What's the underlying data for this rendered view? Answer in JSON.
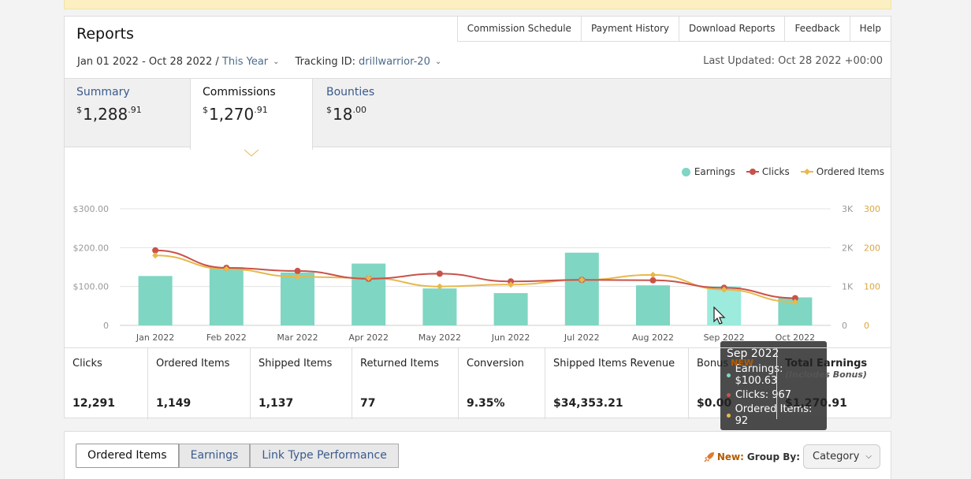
{
  "header": {
    "title": "Reports",
    "links": [
      "Commission Schedule",
      "Payment History",
      "Download Reports",
      "Feedback",
      "Help"
    ],
    "date_range": "Jan 01 2022 - Oct 28 2022",
    "date_sep": " / ",
    "date_preset": "This Year",
    "tracking_label": "Tracking ID:",
    "tracking_id": "drillwarrior-20",
    "last_updated": "Last Updated: Oct 28 2022 +00:00"
  },
  "tabs": {
    "summary": {
      "label": "Summary",
      "dollars": "1,288",
      "cents": ".91",
      "currency": "$"
    },
    "commissions": {
      "label": "Commissions",
      "dollars": "1,270",
      "cents": ".91",
      "currency": "$"
    },
    "bounties": {
      "label": "Bounties",
      "dollars": "18",
      "cents": ".00",
      "currency": "$"
    }
  },
  "colors": {
    "earnings": "#7fd6c2",
    "clicks": "#c9524a",
    "ordered": "#e8b84a",
    "hover_bar": "#9cebdc"
  },
  "chart_data": {
    "type": "bar",
    "categories": [
      "Jan 2022",
      "Feb 2022",
      "Mar 2022",
      "Apr 2022",
      "May 2022",
      "Jun 2022",
      "Jul 2022",
      "Aug 2022",
      "Sep 2022",
      "Oct 2022"
    ],
    "series": [
      {
        "name": "Earnings",
        "type": "bar",
        "axis": "left",
        "values": [
          127.0,
          150.0,
          136.0,
          159.0,
          95.0,
          83.0,
          187.0,
          103.0,
          100.63,
          72.0
        ]
      },
      {
        "name": "Clicks",
        "type": "line",
        "axis": "right-outer",
        "values": [
          1930,
          1480,
          1400,
          1200,
          1330,
          1130,
          1170,
          1160,
          967,
          700
        ]
      },
      {
        "name": "Ordered Items",
        "type": "line",
        "axis": "right-inner",
        "values": [
          180,
          145,
          125,
          122,
          100,
          105,
          117,
          130,
          92,
          60
        ]
      }
    ],
    "left_axis": {
      "ticks": [
        "0",
        "$100.00",
        "$200.00",
        "$300.00"
      ],
      "range": [
        0,
        300
      ]
    },
    "right_outer_axis": {
      "ticks": [
        "0",
        "1K",
        "2K",
        "3K"
      ],
      "range": [
        0,
        3000
      ]
    },
    "right_inner_axis": {
      "ticks": [
        "0",
        "100",
        "200",
        "300"
      ],
      "range": [
        0,
        300
      ]
    },
    "grid": true,
    "legend_position": "top-right",
    "hovered_category": "Sep 2022",
    "tooltip": {
      "title": "Sep 2022",
      "earnings": "Earnings: $100.63",
      "clicks": "Clicks: 967",
      "ordered": "Ordered Items: 92"
    }
  },
  "stats": [
    {
      "label": "Clicks",
      "value": "12,291"
    },
    {
      "label": "Ordered Items",
      "value": "1,149"
    },
    {
      "label": "Shipped Items",
      "value": "1,137"
    },
    {
      "label": "Returned Items",
      "value": "77"
    },
    {
      "label": "Conversion",
      "value": "9.35%"
    },
    {
      "label": "Shipped Items Revenue",
      "value": "$34,353.21"
    },
    {
      "label": "Bonus",
      "badge": "NEW",
      "value": "$0.00"
    },
    {
      "label": "Total Earnings",
      "sub": "(Includes Bonus)",
      "value": "$1,270.91"
    }
  ],
  "bottom": {
    "tabs": [
      "Ordered Items",
      "Earnings",
      "Link Type Performance"
    ],
    "new_label": "New:",
    "group_label": "Group By:",
    "group_value": "Category",
    "rocket_icon": "rocket-icon"
  }
}
